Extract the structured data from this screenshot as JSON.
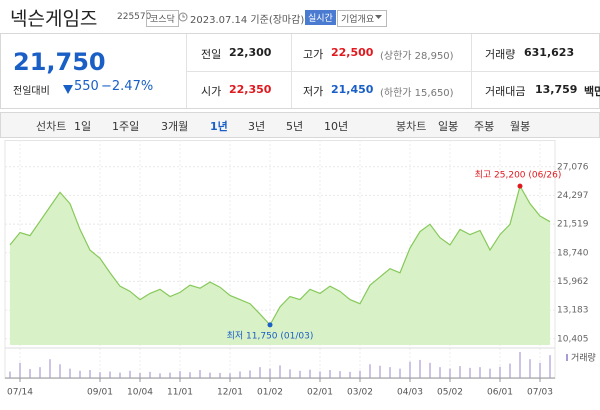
{
  "header": {
    "title": "넥슨게임즈",
    "code": "225570",
    "market": "코스닥",
    "date": "2023.07.14 기준(장마감)",
    "realtime": "실시간",
    "company": "기업개요"
  },
  "quote": {
    "price": "21,750",
    "change_label": "전일대비",
    "change": "550",
    "change_rate": "−2.47%",
    "cells": [
      {
        "label": "전일",
        "value": "22,300",
        "color": "#222222"
      },
      {
        "label": "고가",
        "value": "22,500",
        "extra": "(상한가 28,950)",
        "color": "#e0191f"
      },
      {
        "label": "거래량",
        "value": "631,623",
        "color": "#222222"
      },
      {
        "label": "시가",
        "value": "22,350",
        "color": "#e0191f"
      },
      {
        "label": "저가",
        "value": "21,450",
        "extra": "(하한가 15,650)",
        "color": "#1a5fc6"
      },
      {
        "label": "거래대금",
        "value": "13,759",
        "unit": "백만",
        "color": "#222222"
      }
    ]
  },
  "tabs": {
    "line_chart": "선차트",
    "periods": [
      "1일",
      "1주일",
      "3개월",
      "1년",
      "3년",
      "5년",
      "10년"
    ],
    "selected": 3,
    "candle_chart": "봉차트",
    "candles": [
      "일봉",
      "주봉",
      "월봉"
    ]
  },
  "chart_data": {
    "type": "area",
    "color": "#86c95a",
    "fill": "#d9f1c6",
    "categories": [
      null,
      "07/14",
      null,
      null,
      null,
      null,
      null,
      null,
      null,
      "09/01",
      null,
      null,
      null,
      "10/04",
      null,
      null,
      null,
      "11/01",
      null,
      null,
      null,
      null,
      "12/01",
      null,
      null,
      null,
      "01/02",
      null,
      null,
      null,
      null,
      "02/01",
      null,
      null,
      null,
      "03/02",
      null,
      null,
      null,
      null,
      "04/03",
      null,
      null,
      null,
      "05/02",
      null,
      null,
      null,
      null,
      "06/01",
      null,
      null,
      null,
      "07/03",
      null
    ],
    "values": [
      19500,
      20700,
      20400,
      21800,
      23200,
      24600,
      23500,
      21000,
      19000,
      18200,
      16800,
      15500,
      15000,
      14200,
      14800,
      15200,
      14500,
      14900,
      15600,
      15300,
      15900,
      15400,
      14600,
      14200,
      13800,
      12800,
      11750,
      13500,
      14500,
      14200,
      15200,
      14800,
      15500,
      15000,
      14200,
      13800,
      15600,
      16400,
      17200,
      16800,
      19200,
      20800,
      21500,
      20200,
      19500,
      21000,
      20500,
      20900,
      19000,
      20500,
      21500,
      25200,
      23500,
      22300,
      21750
    ],
    "volume": [
      180000,
      420000,
      250000,
      300000,
      520000,
      380000,
      260000,
      200000,
      220000,
      160000,
      180000,
      150000,
      200000,
      140000,
      170000,
      130000,
      150000,
      190000,
      160000,
      220000,
      150000,
      140000,
      130000,
      180000,
      210000,
      300000,
      260000,
      350000,
      240000,
      200000,
      230000,
      180000,
      220000,
      190000,
      170000,
      200000,
      380000,
      340000,
      300000,
      260000,
      450000,
      500000,
      420000,
      300000,
      260000,
      330000,
      280000,
      300000,
      260000,
      310000,
      400000,
      720000,
      520000,
      420000,
      631623
    ],
    "volume_color": "#a99bd6",
    "volume_label": "거래량",
    "ylim": [
      9800,
      28700
    ],
    "yticks": [
      {
        "value": 27076,
        "label": "27,076"
      },
      {
        "value": 24297,
        "label": "24,297"
      },
      {
        "value": 21519,
        "label": "21,519"
      },
      {
        "value": 18740,
        "label": "18,740"
      },
      {
        "value": 15962,
        "label": "15,962"
      },
      {
        "value": 13183,
        "label": "13,183"
      },
      {
        "value": 10405,
        "label": "10,405"
      }
    ],
    "grid": true,
    "annotations": {
      "high": "최고 25,200 (06/26)",
      "low": "최저 11,750 (01/03)"
    }
  }
}
